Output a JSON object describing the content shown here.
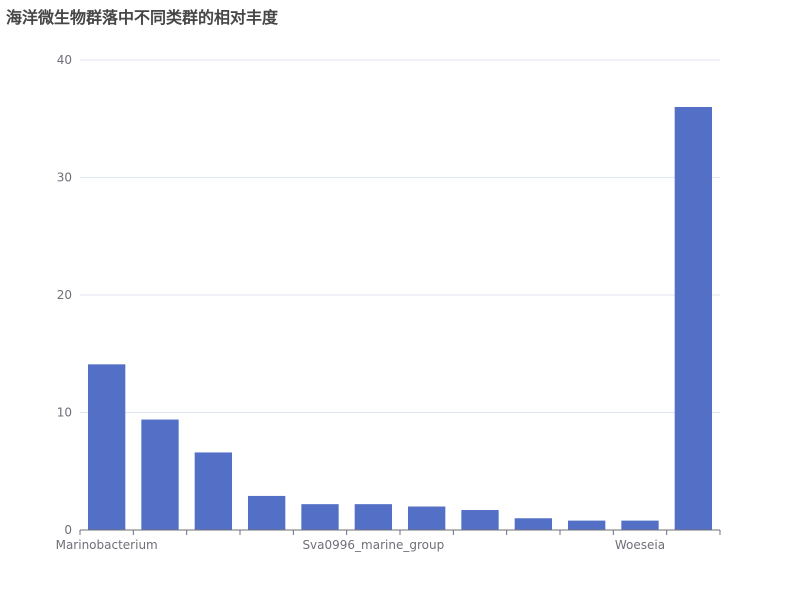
{
  "chart_data": {
    "type": "bar",
    "title": "海洋微生物群落中不同类群的相对丰度",
    "xlabel": "",
    "ylabel": "",
    "ylim": [
      0,
      40
    ],
    "yticks": [
      0,
      10,
      20,
      30,
      40
    ],
    "categories": [
      "Marinobacterium",
      "",
      "",
      "",
      "",
      "Sva0996_marine_group",
      "",
      "",
      "",
      "",
      "Woeseia",
      ""
    ],
    "values": [
      14.1,
      9.4,
      6.6,
      2.9,
      2.2,
      2.2,
      2.0,
      1.7,
      1.0,
      0.8,
      0.8,
      36.0
    ],
    "bar_color": "#5470c6",
    "grid": true
  }
}
